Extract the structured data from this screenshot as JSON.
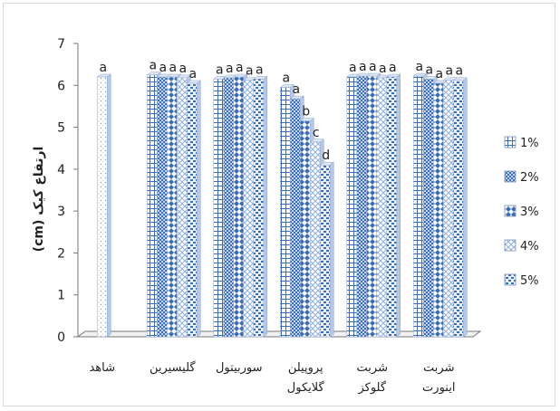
{
  "chart_data": {
    "type": "bar",
    "ylabel": "(cm) ارتفاع کیک",
    "ylim": [
      0,
      7
    ],
    "yticks": [
      0,
      1,
      2,
      3,
      4,
      5,
      6,
      7
    ],
    "categories": [
      [
        "شاهد"
      ],
      [
        "گلیسیرین"
      ],
      [
        "سوربیتول"
      ],
      [
        "پروپیلن",
        "گلایکول"
      ],
      [
        "شربت",
        "گلوکز"
      ],
      [
        "شربت",
        "اینورت"
      ]
    ],
    "control": {
      "category_index": 0,
      "value": 6.2,
      "label": "a",
      "pattern": "dots"
    },
    "series": [
      {
        "name": "1%",
        "pattern": "grid",
        "values": [
          null,
          6.25,
          6.15,
          5.95,
          6.2,
          6.22
        ],
        "labels": [
          null,
          "a",
          "a",
          "a",
          "a",
          "a"
        ]
      },
      {
        "name": "2%",
        "pattern": "checker",
        "values": [
          null,
          6.2,
          6.18,
          5.68,
          6.22,
          6.15
        ],
        "labels": [
          null,
          "a",
          "a",
          "a",
          "a",
          "a"
        ]
      },
      {
        "name": "3%",
        "pattern": "diamond",
        "values": [
          null,
          6.2,
          6.2,
          5.15,
          6.22,
          6.05
        ],
        "labels": [
          null,
          "a",
          "a",
          "b",
          "a",
          "a"
        ]
      },
      {
        "name": "4%",
        "pattern": "lattice",
        "values": [
          null,
          6.18,
          6.12,
          4.65,
          6.18,
          6.12
        ],
        "labels": [
          null,
          "a",
          "a",
          "c",
          "a",
          "a"
        ]
      },
      {
        "name": "5%",
        "pattern": "dash",
        "values": [
          null,
          6.05,
          6.15,
          4.1,
          6.2,
          6.12
        ],
        "labels": [
          null,
          "a",
          "a",
          "d",
          "a",
          "a"
        ]
      }
    ],
    "legend": "right",
    "colors": {
      "accent": "#3a6db4",
      "light": "#c5d5ee"
    }
  }
}
